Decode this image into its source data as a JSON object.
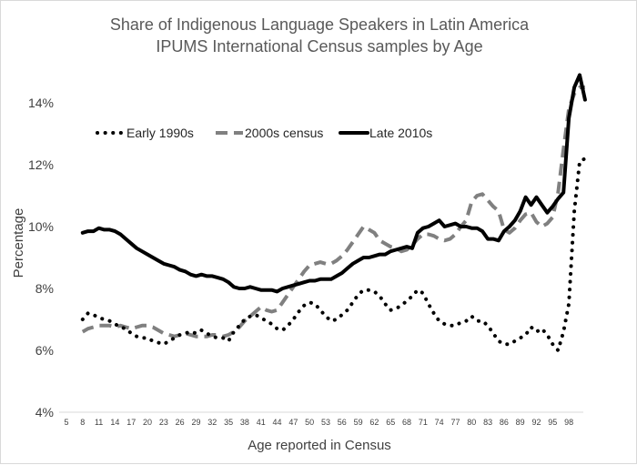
{
  "chart_data": {
    "type": "line",
    "title": "Share of Indigenous Language Speakers in Latin America",
    "subtitle": "IPUMS International Census samples by Age",
    "xlabel": "Age reported in Census",
    "ylabel": "Percentage",
    "ylim": [
      4,
      15
    ],
    "xlim": [
      5,
      100
    ],
    "yticks": [
      {
        "value": 4,
        "label": "4%"
      },
      {
        "value": 6,
        "label": "6%"
      },
      {
        "value": 8,
        "label": "8%"
      },
      {
        "value": 10,
        "label": "10%"
      },
      {
        "value": 12,
        "label": "12%"
      },
      {
        "value": 14,
        "label": "14%"
      }
    ],
    "xticks": [
      "5",
      "8",
      "11",
      "14",
      "17",
      "20",
      "23",
      "26",
      "29",
      "32",
      "35",
      "38",
      "41",
      "44",
      "47",
      "50",
      "53",
      "56",
      "59",
      "62",
      "65",
      "68",
      "71",
      "74",
      "77",
      "80",
      "83",
      "86",
      "89",
      "92",
      "95",
      "98"
    ],
    "grid": false,
    "legend_position": "top-left",
    "series": [
      {
        "name": "Early 1990s",
        "style": "dotted",
        "color": "#000000",
        "x": [
          8,
          9,
          10,
          11,
          12,
          13,
          14,
          15,
          16,
          17,
          18,
          19,
          20,
          21,
          22,
          23,
          24,
          25,
          26,
          27,
          28,
          29,
          30,
          31,
          32,
          33,
          34,
          35,
          36,
          37,
          38,
          39,
          40,
          41,
          42,
          43,
          44,
          45,
          46,
          47,
          48,
          49,
          50,
          51,
          52,
          53,
          54,
          55,
          56,
          57,
          58,
          59,
          60,
          61,
          62,
          63,
          64,
          65,
          66,
          67,
          68,
          69,
          70,
          71,
          72,
          73,
          74,
          75,
          76,
          77,
          78,
          79,
          80,
          81,
          82,
          83,
          84,
          85,
          86,
          87,
          88,
          89,
          90,
          91,
          92,
          93,
          94,
          95,
          96,
          97,
          98,
          99,
          100,
          101
        ],
        "y": [
          7.0,
          7.2,
          7.15,
          7.05,
          7.0,
          6.95,
          6.85,
          6.75,
          6.7,
          6.55,
          6.45,
          6.4,
          6.4,
          6.3,
          6.25,
          6.2,
          6.3,
          6.4,
          6.5,
          6.55,
          6.6,
          6.55,
          6.65,
          6.55,
          6.45,
          6.4,
          6.4,
          6.3,
          6.6,
          6.8,
          7.0,
          7.1,
          7.15,
          7.05,
          6.95,
          6.85,
          6.7,
          6.65,
          6.8,
          7.0,
          7.25,
          7.45,
          7.55,
          7.5,
          7.3,
          7.1,
          6.95,
          7.0,
          7.15,
          7.3,
          7.55,
          7.8,
          7.95,
          7.95,
          7.9,
          7.75,
          7.5,
          7.3,
          7.35,
          7.45,
          7.6,
          7.75,
          7.95,
          7.85,
          7.5,
          7.2,
          6.95,
          6.85,
          6.8,
          6.8,
          6.9,
          6.95,
          7.1,
          6.95,
          6.95,
          6.8,
          6.55,
          6.3,
          6.2,
          6.2,
          6.3,
          6.4,
          6.5,
          6.75,
          6.6,
          6.7,
          6.5,
          6.2,
          6.0,
          6.6,
          7.5,
          10.5,
          12.1,
          12.2
        ]
      },
      {
        "name": "2000s census",
        "style": "dashed",
        "color": "#808080",
        "x": [
          8,
          9,
          10,
          11,
          12,
          13,
          14,
          15,
          16,
          17,
          18,
          19,
          20,
          21,
          22,
          23,
          24,
          25,
          26,
          27,
          28,
          29,
          30,
          31,
          32,
          33,
          34,
          35,
          36,
          37,
          38,
          39,
          40,
          41,
          42,
          43,
          44,
          45,
          46,
          47,
          48,
          49,
          50,
          51,
          52,
          53,
          54,
          55,
          56,
          57,
          58,
          59,
          60,
          61,
          62,
          63,
          64,
          65,
          66,
          67,
          68,
          69,
          70,
          71,
          72,
          73,
          74,
          75,
          76,
          77,
          78,
          79,
          80,
          81,
          82,
          83,
          84,
          85,
          86,
          87,
          88,
          89,
          90,
          91,
          92,
          93,
          94,
          95,
          96,
          97,
          98,
          99,
          100,
          101
        ],
        "y": [
          6.6,
          6.7,
          6.75,
          6.8,
          6.8,
          6.8,
          6.75,
          6.8,
          6.75,
          6.7,
          6.75,
          6.8,
          6.8,
          6.75,
          6.65,
          6.55,
          6.5,
          6.45,
          6.5,
          6.55,
          6.5,
          6.45,
          6.45,
          6.45,
          6.5,
          6.5,
          6.45,
          6.5,
          6.6,
          6.75,
          6.95,
          7.1,
          7.25,
          7.4,
          7.3,
          7.25,
          7.3,
          7.55,
          7.8,
          8.05,
          8.3,
          8.55,
          8.75,
          8.8,
          8.85,
          8.8,
          8.8,
          8.9,
          9.05,
          9.25,
          9.5,
          9.75,
          10.0,
          9.9,
          9.8,
          9.55,
          9.45,
          9.35,
          9.3,
          9.2,
          9.25,
          9.4,
          9.6,
          9.75,
          9.75,
          9.7,
          9.6,
          9.55,
          9.6,
          9.75,
          10.0,
          10.2,
          10.8,
          11.0,
          11.05,
          10.85,
          10.65,
          10.5,
          9.9,
          9.8,
          9.95,
          10.2,
          10.4,
          10.45,
          10.15,
          10.0,
          10.1,
          10.3,
          11.1,
          12.5,
          13.8,
          14.3,
          14.5,
          14.5
        ]
      },
      {
        "name": "Late 2010s",
        "style": "solid",
        "color": "#000000",
        "x": [
          8,
          9,
          10,
          11,
          12,
          13,
          14,
          15,
          16,
          17,
          18,
          19,
          20,
          21,
          22,
          23,
          24,
          25,
          26,
          27,
          28,
          29,
          30,
          31,
          32,
          33,
          34,
          35,
          36,
          37,
          38,
          39,
          40,
          41,
          42,
          43,
          44,
          45,
          46,
          47,
          48,
          49,
          50,
          51,
          52,
          53,
          54,
          55,
          56,
          57,
          58,
          59,
          60,
          61,
          62,
          63,
          64,
          65,
          66,
          67,
          68,
          69,
          70,
          71,
          72,
          73,
          74,
          75,
          76,
          77,
          78,
          79,
          80,
          81,
          82,
          83,
          84,
          85,
          86,
          87,
          88,
          89,
          90,
          91,
          92,
          93,
          94,
          95,
          96,
          97,
          98,
          99,
          100,
          101
        ],
        "y": [
          9.8,
          9.85,
          9.85,
          9.95,
          9.9,
          9.9,
          9.85,
          9.75,
          9.6,
          9.45,
          9.3,
          9.2,
          9.1,
          9.0,
          8.9,
          8.8,
          8.75,
          8.7,
          8.6,
          8.55,
          8.45,
          8.4,
          8.45,
          8.4,
          8.4,
          8.35,
          8.3,
          8.2,
          8.05,
          8.0,
          8.0,
          8.05,
          8.0,
          7.95,
          7.95,
          7.95,
          7.9,
          8.0,
          8.05,
          8.1,
          8.15,
          8.2,
          8.25,
          8.25,
          8.3,
          8.3,
          8.3,
          8.4,
          8.5,
          8.65,
          8.8,
          8.9,
          9.0,
          9.0,
          9.05,
          9.1,
          9.1,
          9.2,
          9.25,
          9.3,
          9.35,
          9.3,
          9.8,
          9.95,
          10.0,
          10.1,
          10.2,
          10.0,
          10.05,
          10.1,
          10.0,
          10.0,
          9.95,
          9.95,
          9.85,
          9.6,
          9.6,
          9.55,
          9.85,
          10.0,
          10.2,
          10.5,
          10.95,
          10.7,
          10.95,
          10.7,
          10.45,
          10.65,
          10.9,
          11.1,
          13.5,
          14.5,
          14.9,
          14.1
        ]
      }
    ]
  }
}
